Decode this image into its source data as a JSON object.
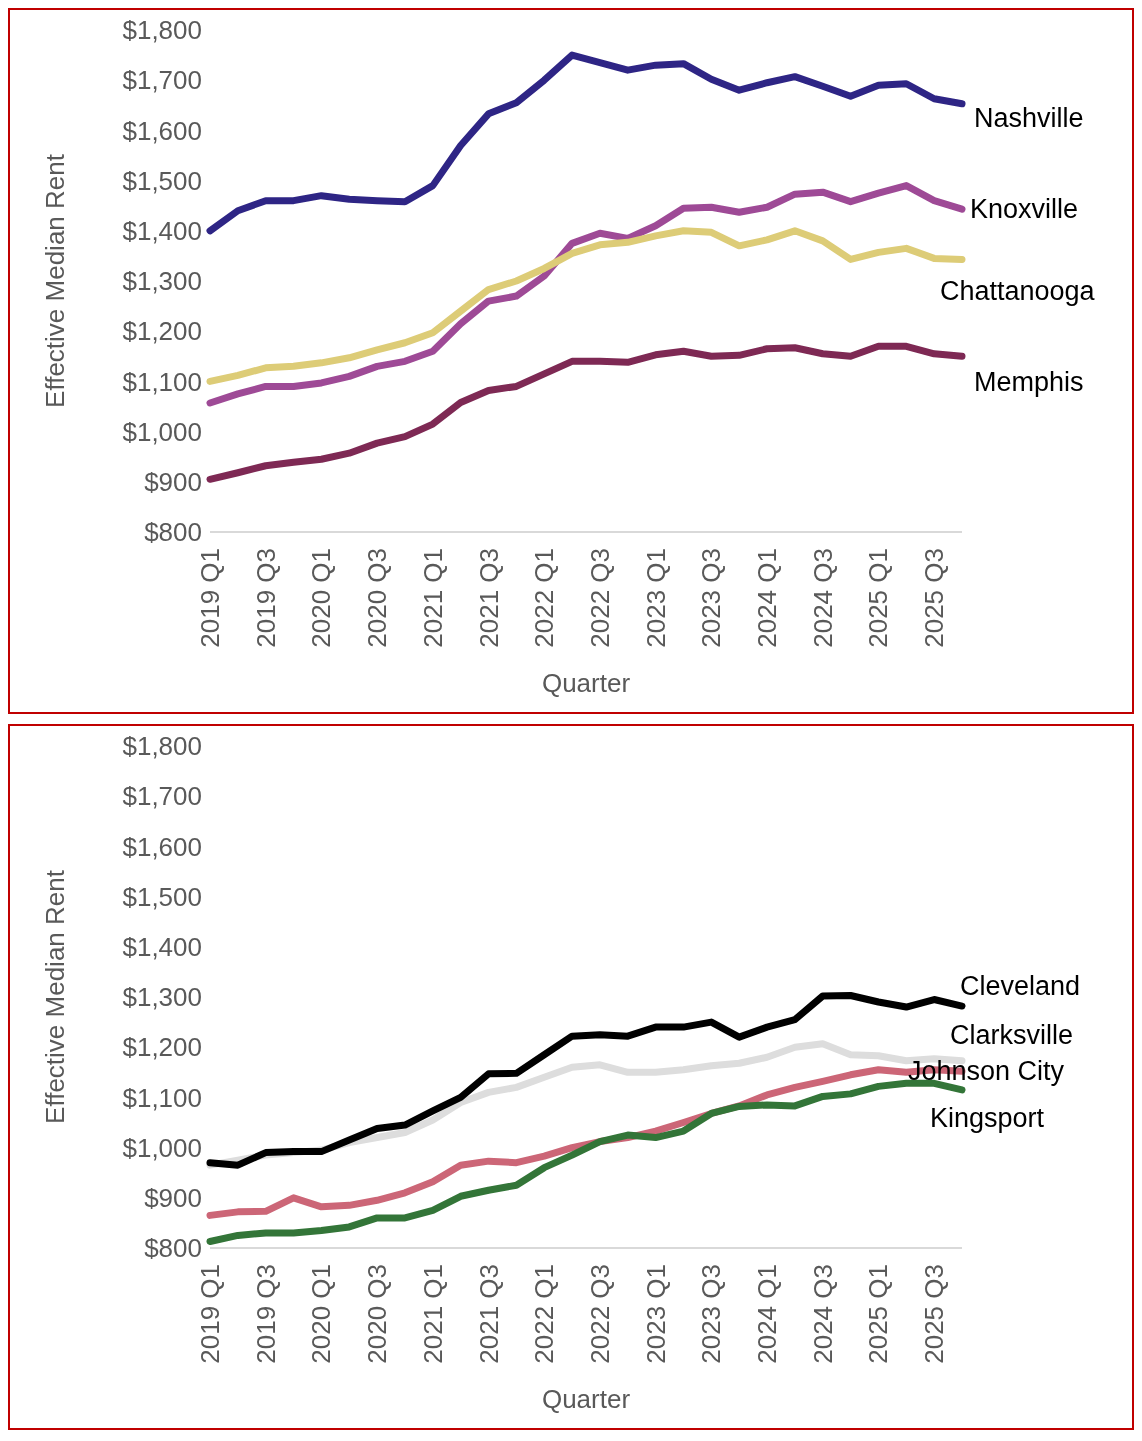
{
  "chart_data": [
    {
      "type": "line",
      "xlabel": "Quarter",
      "ylabel": "Effective Median Rent",
      "marker": "none",
      "categories": [
        "2019 Q1",
        null,
        "2019 Q3",
        null,
        "2020 Q1",
        null,
        "2020 Q3",
        null,
        "2021 Q1",
        null,
        "2021 Q3",
        null,
        "2022 Q1",
        null,
        "2022 Q3",
        null,
        "2023 Q1",
        null,
        "2023 Q3",
        null,
        "2024 Q1",
        null,
        "2024 Q3",
        null,
        "2025 Q1",
        null,
        "2025 Q3",
        null
      ],
      "ylim": [
        800,
        1800
      ],
      "yticks": [
        {
          "value": 800,
          "label": "$800"
        },
        {
          "value": 900,
          "label": "$900"
        },
        {
          "value": 1000,
          "label": "$1,000"
        },
        {
          "value": 1100,
          "label": "$1,100"
        },
        {
          "value": 1200,
          "label": "$1,200"
        },
        {
          "value": 1300,
          "label": "$1,300"
        },
        {
          "value": 1400,
          "label": "$1,400"
        },
        {
          "value": 1500,
          "label": "$1,500"
        },
        {
          "value": 1600,
          "label": "$1,600"
        },
        {
          "value": 1700,
          "label": "$1,700"
        },
        {
          "value": 1800,
          "label": "$1,800"
        }
      ],
      "series": [
        {
          "name": "Nashville",
          "color": "#2e2585",
          "values": [
            1400,
            1440,
            1460,
            1460,
            1470,
            1463,
            1460,
            1458,
            1490,
            1570,
            1633,
            1655,
            1700,
            1750,
            1735,
            1720,
            1730,
            1733,
            1702,
            1680,
            1695,
            1707,
            1688,
            1668,
            1690,
            1693,
            1663,
            1653
          ]
        },
        {
          "name": "Knoxville",
          "color": "#9e4a96",
          "values": [
            1057,
            1075,
            1090,
            1090,
            1097,
            1110,
            1130,
            1140,
            1160,
            1215,
            1260,
            1270,
            1310,
            1375,
            1395,
            1385,
            1410,
            1445,
            1447,
            1437,
            1447,
            1473,
            1477,
            1458,
            1475,
            1490,
            1460,
            1443
          ]
        },
        {
          "name": "Chattanooga",
          "color": "#ddcc77",
          "values": [
            1100,
            1112,
            1127,
            1130,
            1137,
            1147,
            1163,
            1177,
            1197,
            1240,
            1283,
            1300,
            1325,
            1355,
            1372,
            1377,
            1390,
            1400,
            1397,
            1370,
            1382,
            1400,
            1380,
            1343,
            1357,
            1365,
            1345,
            1343
          ]
        },
        {
          "name": "Memphis",
          "color": "#7e2954",
          "values": [
            905,
            918,
            932,
            939,
            945,
            957,
            977,
            990,
            1015,
            1058,
            1082,
            1090,
            1115,
            1140,
            1140,
            1138,
            1153,
            1160,
            1150,
            1152,
            1165,
            1167,
            1155,
            1150,
            1170,
            1170,
            1155,
            1150
          ]
        }
      ]
    },
    {
      "type": "line",
      "xlabel": "Quarter",
      "ylabel": "Effective Median Rent",
      "marker": "none",
      "categories": [
        "2019 Q1",
        null,
        "2019 Q3",
        null,
        "2020 Q1",
        null,
        "2020 Q3",
        null,
        "2021 Q1",
        null,
        "2021 Q3",
        null,
        "2022 Q1",
        null,
        "2022 Q3",
        null,
        "2023 Q1",
        null,
        "2023 Q3",
        null,
        "2024 Q1",
        null,
        "2024 Q3",
        null,
        "2025 Q1",
        null,
        "2025 Q3",
        null
      ],
      "ylim": [
        800,
        1800
      ],
      "yticks": [
        {
          "value": 800,
          "label": "$800"
        },
        {
          "value": 900,
          "label": "$900"
        },
        {
          "value": 1000,
          "label": "$1,000"
        },
        {
          "value": 1100,
          "label": "$1,100"
        },
        {
          "value": 1200,
          "label": "$1,200"
        },
        {
          "value": 1300,
          "label": "$1,300"
        },
        {
          "value": 1400,
          "label": "$1,400"
        },
        {
          "value": 1500,
          "label": "$1,500"
        },
        {
          "value": 1600,
          "label": "$1,600"
        },
        {
          "value": 1700,
          "label": "$1,700"
        },
        {
          "value": 1800,
          "label": "$1,800"
        }
      ],
      "series": [
        {
          "name": "Clarksville",
          "color": "#dddddd",
          "values": [
            965,
            975,
            985,
            990,
            995,
            1010,
            1020,
            1030,
            1055,
            1090,
            1110,
            1120,
            1140,
            1160,
            1165,
            1150,
            1150,
            1155,
            1163,
            1168,
            1180,
            1200,
            1207,
            1185,
            1183,
            1173,
            1177,
            1173
          ]
        },
        {
          "name": "Johnson City",
          "color": "#cc6677",
          "values": [
            865,
            872,
            873,
            900,
            882,
            885,
            895,
            910,
            932,
            965,
            973,
            970,
            983,
            1000,
            1012,
            1020,
            1033,
            1050,
            1068,
            1083,
            1105,
            1120,
            1132,
            1145,
            1155,
            1150,
            1155,
            1152
          ]
        },
        {
          "name": "Kingsport",
          "color": "#337538",
          "values": [
            813,
            825,
            830,
            830,
            835,
            842,
            860,
            860,
            875,
            903,
            915,
            925,
            960,
            985,
            1012,
            1025,
            1020,
            1033,
            1068,
            1082,
            1085,
            1083,
            1102,
            1107,
            1122,
            1128,
            1128,
            1115
          ]
        },
        {
          "name": "Cleveland",
          "color": "#000000",
          "values": [
            970,
            965,
            990,
            992,
            992,
            1015,
            1038,
            1045,
            1073,
            1100,
            1147,
            1148,
            1185,
            1222,
            1225,
            1222,
            1240,
            1240,
            1250,
            1220,
            1240,
            1255,
            1302,
            1303,
            1290,
            1280,
            1295,
            1282
          ]
        }
      ]
    }
  ]
}
